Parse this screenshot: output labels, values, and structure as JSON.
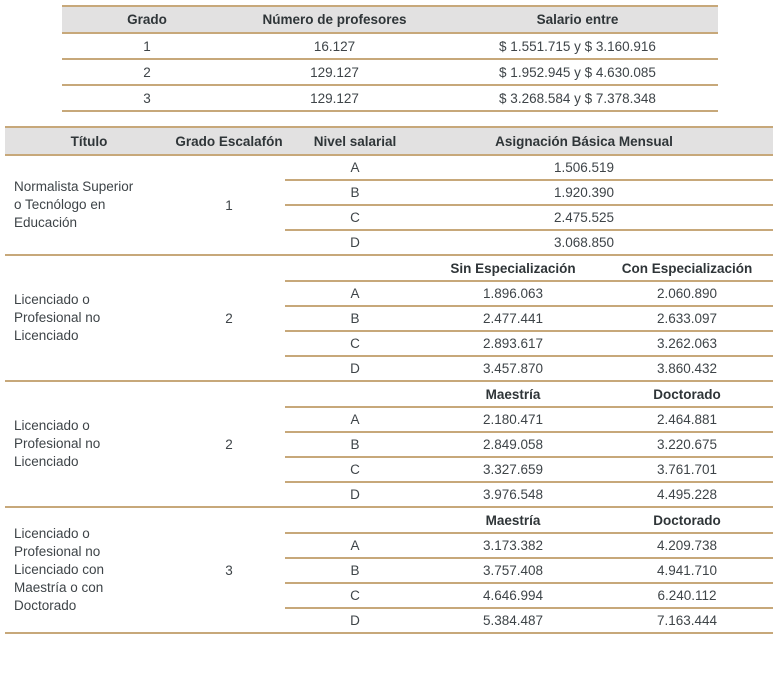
{
  "colors": {
    "line": "#c7a87a",
    "header_bg": "#e2e1e1",
    "text": "#3e4448",
    "bold_text": "#2f3538"
  },
  "grados_table": {
    "headers": [
      "Grado",
      "Número de profesores",
      "Salario entre"
    ],
    "rows": [
      [
        "1",
        "16.127",
        "$ 1.551.715 y $ 3.160.916"
      ],
      [
        "2",
        "129.127",
        "$ 1.952.945 y $ 4.630.085"
      ],
      [
        "3",
        "129.127",
        "$ 3.268.584 y $ 7.378.348"
      ]
    ]
  },
  "escalafon_table": {
    "headers": [
      "Título",
      "Grado Escalafón",
      "Nivel salarial",
      "Asignación Básica Mensual"
    ],
    "groups": [
      {
        "titulo": "Normalista Superior o Tecnólogo en Educación",
        "grado": "1",
        "subheaders": null,
        "rows": [
          [
            "A",
            "1.506.519"
          ],
          [
            "B",
            "1.920.390"
          ],
          [
            "C",
            "2.475.525"
          ],
          [
            "D",
            "3.068.850"
          ]
        ]
      },
      {
        "titulo": "Licenciado o Profesional no Licenciado",
        "grado": "2",
        "subheaders": [
          "Sin Especialización",
          "Con Especialización"
        ],
        "rows": [
          [
            "A",
            "1.896.063",
            "2.060.890"
          ],
          [
            "B",
            "2.477.441",
            "2.633.097"
          ],
          [
            "C",
            "2.893.617",
            "3.262.063"
          ],
          [
            "D",
            "3.457.870",
            "3.860.432"
          ]
        ]
      },
      {
        "titulo": "Licenciado o Profesional no Licenciado",
        "grado": "2",
        "subheaders": [
          "Maestría",
          "Doctorado"
        ],
        "rows": [
          [
            "A",
            "2.180.471",
            "2.464.881"
          ],
          [
            "B",
            "2.849.058",
            "3.220.675"
          ],
          [
            "C",
            "3.327.659",
            "3.761.701"
          ],
          [
            "D",
            "3.976.548",
            "4.495.228"
          ]
        ]
      },
      {
        "titulo": "Licenciado o Profesional no Licenciado con Maestría o con Doctorado",
        "grado": "3",
        "subheaders": [
          "Maestría",
          "Doctorado"
        ],
        "rows": [
          [
            "A",
            "3.173.382",
            "4.209.738"
          ],
          [
            "B",
            "3.757.408",
            "4.941.710"
          ],
          [
            "C",
            "4.646.994",
            "6.240.112"
          ],
          [
            "D",
            "5.384.487",
            "7.163.444"
          ]
        ]
      }
    ]
  }
}
